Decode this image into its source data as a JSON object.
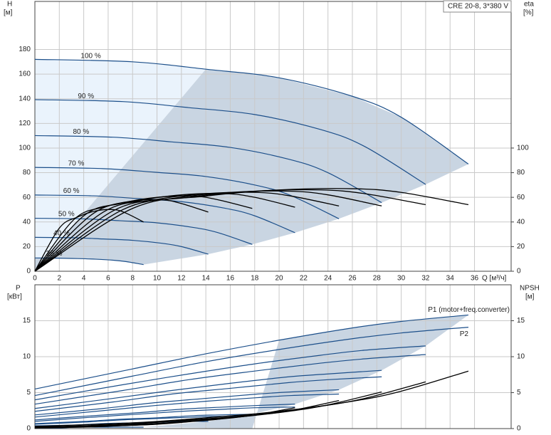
{
  "chart_data": [
    {
      "type": "line",
      "title": "CRE 20-8, 3*380 V",
      "x_label": "Q [м³/ч]",
      "y_label": "H",
      "y_unit": "[м]",
      "y2_label": "eta",
      "y2_unit": "[%]",
      "xlim": [
        0,
        39
      ],
      "ylim": [
        0,
        219
      ],
      "y2lim": [
        0,
        219
      ],
      "xticks": [
        0,
        2,
        4,
        6,
        8,
        10,
        12,
        14,
        16,
        18,
        20,
        22,
        24,
        26,
        28,
        30,
        32,
        34,
        36
      ],
      "yticks": [
        0,
        20,
        40,
        60,
        80,
        100,
        120,
        140,
        160,
        180
      ],
      "y2ticks": [
        0,
        20,
        40,
        60,
        80,
        100
      ],
      "grid": true,
      "series": [
        {
          "name": "100 %",
          "color": "#1c4f8a",
          "x": [
            0,
            8,
            14,
            20,
            26,
            30,
            35.5
          ],
          "values": [
            172,
            170,
            164,
            157,
            142,
            125,
            87
          ]
        },
        {
          "name": "90 %",
          "color": "#1c4f8a",
          "x": [
            0,
            7.2,
            12.6,
            18,
            23.4,
            27,
            32
          ],
          "values": [
            139.3,
            137.7,
            132.8,
            127.2,
            115,
            101.3,
            70.5
          ]
        },
        {
          "name": "80 %",
          "color": "#1c4f8a",
          "x": [
            0,
            6.4,
            11.2,
            16,
            20.8,
            24,
            28.4
          ],
          "values": [
            110.1,
            108.8,
            105,
            100.5,
            90.9,
            80,
            55.7
          ]
        },
        {
          "name": "70 %",
          "color": "#1c4f8a",
          "x": [
            0,
            5.6,
            9.8,
            14,
            18.2,
            21,
            24.9
          ],
          "values": [
            84.3,
            83.3,
            80.4,
            76.9,
            69.6,
            61.3,
            42.6
          ]
        },
        {
          "name": "60 %",
          "color": "#1c4f8a",
          "x": [
            0,
            4.8,
            8.4,
            12,
            15.6,
            18,
            21.3
          ],
          "values": [
            61.9,
            61.2,
            59,
            56.5,
            51.1,
            45,
            31.3
          ]
        },
        {
          "name": "50 %",
          "color": "#1c4f8a",
          "x": [
            0,
            4,
            7,
            10,
            13,
            15,
            17.8
          ],
          "values": [
            43,
            42.5,
            41,
            39.3,
            35.5,
            31.3,
            21.8
          ]
        },
        {
          "name": "40 %",
          "color": "#1c4f8a",
          "x": [
            0,
            3.2,
            5.6,
            8,
            10.4,
            12,
            14.2
          ],
          "values": [
            27.5,
            27.2,
            26.2,
            25.1,
            22.7,
            20,
            13.9
          ]
        },
        {
          "name": "25 %",
          "color": "#1c4f8a",
          "x": [
            0,
            2,
            3.5,
            5,
            6.5,
            7.5,
            8.9
          ],
          "values": [
            10.8,
            10.6,
            10.3,
            9.8,
            8.9,
            7.8,
            5.4
          ]
        },
        {
          "axis": "y2",
          "color": "#000000",
          "x": [
            0,
            8,
            14,
            20,
            26,
            30,
            35.5
          ],
          "values": [
            0,
            51,
            61,
            66,
            67,
            64,
            54
          ]
        },
        {
          "axis": "y2",
          "color": "#000000",
          "x": [
            0,
            7.2,
            12.6,
            18,
            23.4,
            27,
            32
          ],
          "values": [
            0,
            50,
            60,
            65,
            66,
            63,
            54
          ]
        },
        {
          "axis": "y2",
          "color": "#000000",
          "x": [
            0,
            6.4,
            11.2,
            16,
            20.8,
            24,
            28.4
          ],
          "values": [
            0,
            49,
            59,
            64,
            65,
            62,
            53
          ]
        },
        {
          "axis": "y2",
          "color": "#000000",
          "x": [
            0,
            5.6,
            9.8,
            14,
            18.2,
            21,
            24.9
          ],
          "values": [
            0,
            48,
            58,
            63,
            64,
            61,
            53
          ]
        },
        {
          "axis": "y2",
          "color": "#000000",
          "x": [
            0,
            4.8,
            8.4,
            12,
            15.6,
            18,
            21.3
          ],
          "values": [
            0,
            47,
            57,
            62,
            63,
            60,
            52
          ]
        },
        {
          "axis": "y2",
          "color": "#000000",
          "x": [
            0,
            4,
            7,
            10,
            13,
            15,
            17.8
          ],
          "values": [
            0,
            45,
            55,
            60,
            61,
            58,
            51
          ]
        },
        {
          "axis": "y2",
          "color": "#000000",
          "x": [
            0,
            3.2,
            5.6,
            8,
            10.4,
            12,
            14.2
          ],
          "values": [
            0,
            42,
            52,
            57,
            58,
            55,
            48
          ]
        },
        {
          "axis": "y2",
          "color": "#000000",
          "x": [
            0,
            2,
            3.5,
            5,
            6.5,
            7.5,
            8.9
          ],
          "values": [
            0,
            35,
            44,
            49,
            50,
            47,
            40
          ]
        }
      ]
    },
    {
      "type": "line",
      "y_label": "P",
      "y_unit": "[кВт]",
      "y2_label": "NPSH",
      "y2_unit": "[м]",
      "xlim": [
        0,
        39
      ],
      "ylim": [
        0,
        20
      ],
      "y2lim": [
        0,
        20
      ],
      "xticks": [
        0,
        2,
        4,
        6,
        8,
        10,
        12,
        14,
        16,
        18,
        20,
        22,
        24,
        26,
        28,
        30,
        32,
        34,
        36
      ],
      "yticks": [
        0,
        5,
        10,
        15
      ],
      "y2ticks": [
        0,
        5,
        10,
        15
      ],
      "grid": true,
      "series": [
        {
          "name": "P1 (motor+freq.converter)",
          "color": "#1c4f8a",
          "x": [
            0,
            8,
            14,
            20,
            26,
            30,
            35.5
          ],
          "values": [
            5.5,
            8.3,
            10.4,
            12.3,
            14,
            14.9,
            15.8
          ]
        },
        {
          "color": "#1c4f8a",
          "x": [
            0,
            7.2,
            12.6,
            18,
            23.4,
            27,
            32
          ],
          "values": [
            4.0,
            6.1,
            7.6,
            9.0,
            10.2,
            10.9,
            11.5
          ]
        },
        {
          "color": "#1c4f8a",
          "x": [
            0,
            6.4,
            11.2,
            16,
            20.8,
            24,
            28.4
          ],
          "values": [
            2.8,
            4.2,
            5.3,
            6.3,
            7.2,
            7.6,
            8.1
          ]
        },
        {
          "color": "#1c4f8a",
          "x": [
            0,
            5.6,
            9.8,
            14,
            18.2,
            21,
            24.9
          ],
          "values": [
            1.9,
            2.8,
            3.6,
            4.2,
            4.8,
            5.1,
            5.4
          ]
        },
        {
          "color": "#1c4f8a",
          "x": [
            0,
            4.8,
            8.4,
            12,
            15.6,
            18,
            21.3
          ],
          "values": [
            1.2,
            1.8,
            2.2,
            2.7,
            3.0,
            3.2,
            3.4
          ]
        },
        {
          "color": "#1c4f8a",
          "x": [
            0,
            4,
            7,
            10,
            13,
            15,
            17.8
          ],
          "values": [
            0.7,
            1.0,
            1.3,
            1.5,
            1.8,
            1.9,
            2.0
          ]
        },
        {
          "color": "#1c4f8a",
          "x": [
            0,
            3.2,
            5.6,
            8,
            10.4,
            12,
            14.2
          ],
          "values": [
            0.4,
            0.5,
            0.7,
            0.8,
            0.9,
            1.0,
            1.0
          ]
        },
        {
          "color": "#1c4f8a",
          "x": [
            0,
            2,
            3.5,
            5,
            6.5,
            7.5,
            8.9
          ],
          "values": [
            0.1,
            0.1,
            0.2,
            0.2,
            0.2,
            0.2,
            0.2
          ]
        },
        {
          "name": "P2",
          "color": "#1c4f8a",
          "x": [
            0,
            8,
            14,
            20,
            26,
            30,
            35.5
          ],
          "values": [
            4.6,
            7.3,
            9.3,
            11,
            12.5,
            13.3,
            14.1
          ]
        },
        {
          "color": "#1c4f8a",
          "x": [
            0,
            7.2,
            12.6,
            18,
            23.4,
            27,
            32
          ],
          "values": [
            3.4,
            5.3,
            6.8,
            8.0,
            9.1,
            9.7,
            10.3
          ]
        },
        {
          "color": "#1c4f8a",
          "x": [
            0,
            6.4,
            11.2,
            16,
            20.8,
            24,
            28.4
          ],
          "values": [
            2.4,
            3.7,
            4.8,
            5.6,
            6.4,
            6.8,
            7.2
          ]
        },
        {
          "color": "#1c4f8a",
          "x": [
            0,
            5.6,
            9.8,
            14,
            18.2,
            21,
            24.9
          ],
          "values": [
            1.6,
            2.5,
            3.2,
            3.8,
            4.3,
            4.6,
            4.8
          ]
        },
        {
          "color": "#1c4f8a",
          "x": [
            0,
            4.8,
            8.4,
            12,
            15.6,
            18,
            21.3
          ],
          "values": [
            1.0,
            1.6,
            2.0,
            2.4,
            2.7,
            2.9,
            3.0
          ]
        },
        {
          "color": "#1c4f8a",
          "x": [
            0,
            4,
            7,
            10,
            13,
            15,
            17.8
          ],
          "values": [
            0.6,
            0.9,
            1.2,
            1.4,
            1.6,
            1.7,
            1.8
          ]
        },
        {
          "axis": "y2",
          "color": "#000000",
          "x": [
            0,
            8,
            14,
            20,
            26,
            30,
            35.5
          ],
          "values": [
            0.3,
            0.8,
            1.5,
            2.4,
            3.8,
            5.2,
            8
          ]
        },
        {
          "axis": "y2",
          "color": "#000000",
          "x": [
            0,
            7.2,
            12.6,
            18,
            23.4,
            27,
            32
          ],
          "values": [
            0.2,
            0.6,
            1.2,
            1.9,
            3.1,
            4.2,
            6.5
          ]
        },
        {
          "axis": "y2",
          "color": "#000000",
          "x": [
            0,
            6.4,
            11.2,
            16,
            20.8,
            24,
            28.4
          ],
          "values": [
            0.2,
            0.5,
            1,
            1.5,
            2.4,
            3.3,
            5.1
          ]
        },
        {
          "axis": "y2",
          "color": "#000000",
          "x": [
            0,
            5.6,
            9.8,
            14,
            18.2,
            21,
            24.9
          ],
          "values": [
            0.1,
            0.4,
            0.7,
            1.2,
            1.9,
            2.5,
            3.9
          ]
        },
        {
          "axis": "y2",
          "color": "#000000",
          "x": [
            0,
            4.8,
            8.4,
            12,
            15.6,
            18,
            21.3
          ],
          "values": [
            0.1,
            0.3,
            0.5,
            0.9,
            1.4,
            1.9,
            2.9
          ]
        },
        {
          "axis": "y2",
          "color": "#000000",
          "x": [
            0,
            4,
            7,
            10,
            13,
            15,
            17.8
          ],
          "values": [
            0.1,
            0.2,
            0.4,
            0.6,
            1,
            1.3,
            2
          ]
        }
      ]
    }
  ]
}
